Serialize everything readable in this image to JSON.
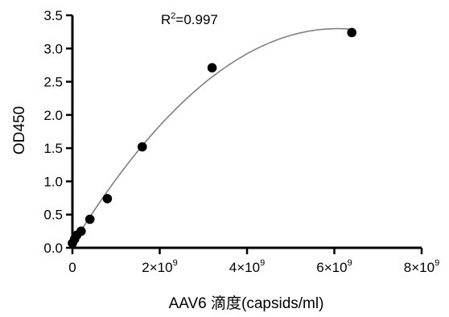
{
  "chart_data": {
    "type": "scatter",
    "xlabel": "AAV6 滴度(capsids/ml)",
    "ylabel": "OD450",
    "annotation": {
      "base": "R",
      "sup": "2",
      "rest": "=0.997"
    },
    "xlim": [
      0,
      8
    ],
    "ylim": [
      0,
      3.5
    ],
    "x_ticks": [
      {
        "value": 0,
        "mantissa": "0",
        "times": "",
        "base": "",
        "exp": ""
      },
      {
        "value": 2,
        "mantissa": "2",
        "times": "×",
        "base": "10",
        "exp": "9"
      },
      {
        "value": 4,
        "mantissa": "4",
        "times": "×",
        "base": "10",
        "exp": "9"
      },
      {
        "value": 6,
        "mantissa": "6",
        "times": "×",
        "base": "10",
        "exp": "9"
      },
      {
        "value": 8,
        "mantissa": "8",
        "times": "×",
        "base": "10",
        "exp": "9"
      }
    ],
    "y_ticks": [
      {
        "value": 0,
        "label": "0.0"
      },
      {
        "value": 0.5,
        "label": "0.5"
      },
      {
        "value": 1,
        "label": "1.0"
      },
      {
        "value": 1.5,
        "label": "1.5"
      },
      {
        "value": 2,
        "label": "2.0"
      },
      {
        "value": 2.5,
        "label": "2.5"
      },
      {
        "value": 3,
        "label": "3.0"
      },
      {
        "value": 3.5,
        "label": "3.5"
      }
    ],
    "points": [
      {
        "x": 0.0,
        "y": 0.07
      },
      {
        "x": 0.05,
        "y": 0.13
      },
      {
        "x": 0.1,
        "y": 0.19
      },
      {
        "x": 0.2,
        "y": 0.25
      },
      {
        "x": 0.4,
        "y": 0.43
      },
      {
        "x": 0.8,
        "y": 0.74
      },
      {
        "x": 1.6,
        "y": 1.52
      },
      {
        "x": 3.2,
        "y": 2.71
      },
      {
        "x": 6.4,
        "y": 3.24
      }
    ],
    "fit": {
      "type": "polynomial-2",
      "coefficients": [
        0.05,
        1.07,
        -0.0881
      ],
      "x_range": [
        0,
        6.4
      ]
    },
    "grid": false,
    "colors": {
      "points": "#000000",
      "fit_line": "#808080",
      "axis": "#000000"
    }
  }
}
